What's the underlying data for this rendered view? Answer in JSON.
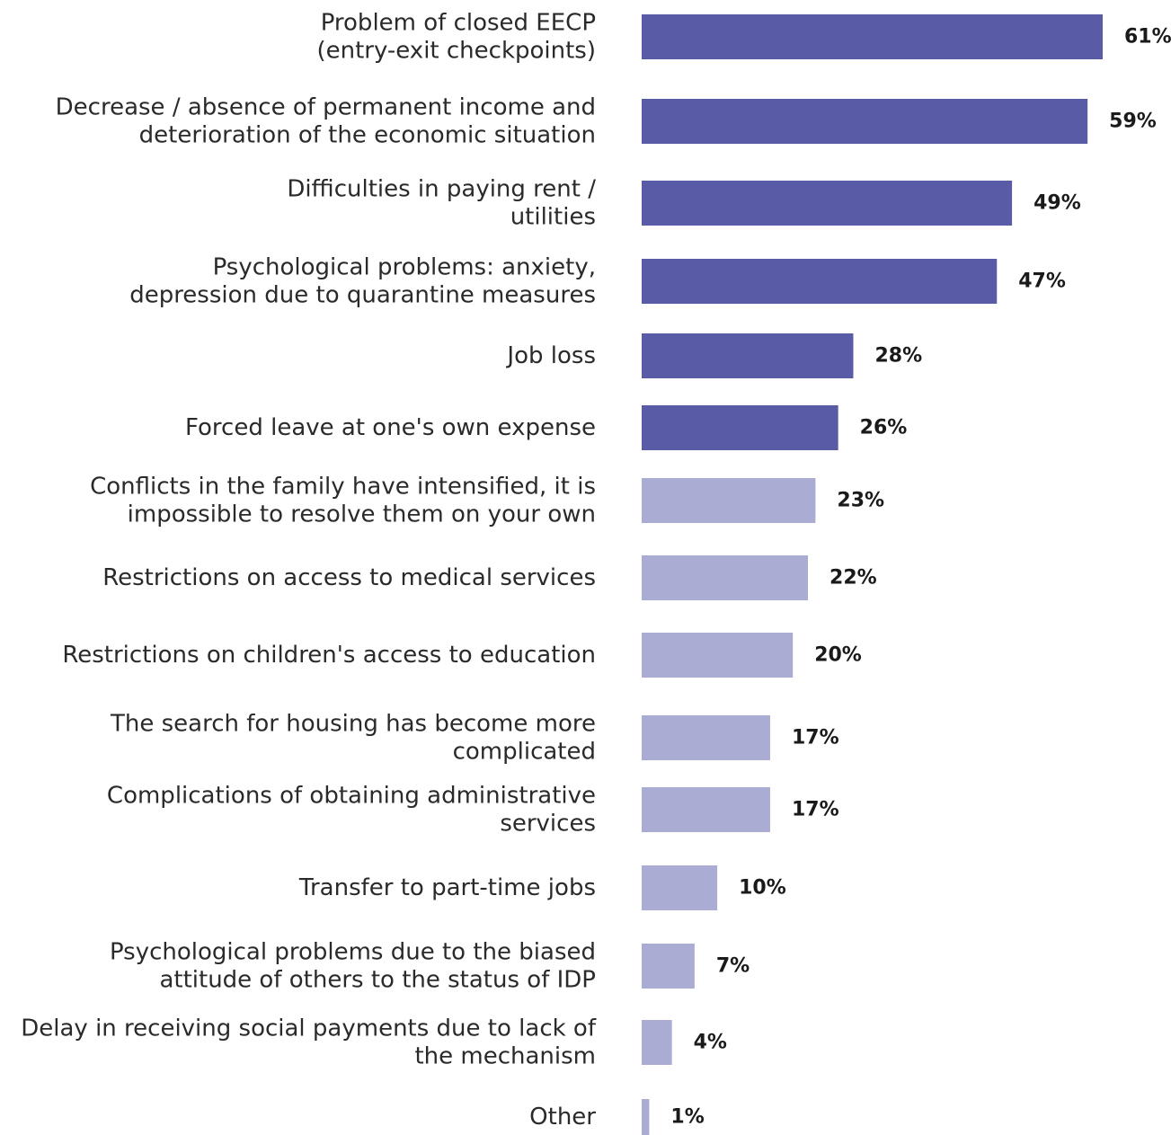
{
  "chart_data": {
    "type": "bar",
    "orientation": "horizontal",
    "categories": [
      [
        "Problem of closed EECP",
        "(entry-exit checkpoints)"
      ],
      [
        "Decrease / absence of permanent income and",
        "deterioration of the economic situation"
      ],
      [
        "Difficulties in paying rent /",
        "utilities"
      ],
      [
        "Psychological problems: anxiety,",
        "depression due to quarantine measures"
      ],
      [
        "Job loss"
      ],
      [
        "Forced leave at one's own expense"
      ],
      [
        "Conflicts in the family have intensified, it is",
        "impossible to resolve them on your own"
      ],
      [
        "Restrictions on access to medical services"
      ],
      [
        "Restrictions on children's access to education"
      ],
      [
        "The search for housing has become more",
        "complicated"
      ],
      [
        "Complications of obtaining administrative",
        "services"
      ],
      [
        "Transfer to part-time jobs"
      ],
      [
        "Psychological problems due to the biased",
        "attitude of others to the status of IDP"
      ],
      [
        "Delay in receiving social payments due to lack of",
        "the mechanism"
      ],
      [
        "Other"
      ]
    ],
    "values": [
      61,
      59,
      49,
      47,
      28,
      26,
      23,
      22,
      20,
      17,
      17,
      10,
      7,
      4,
      1
    ],
    "value_labels": [
      "61%",
      "59%",
      "49%",
      "47%",
      "28%",
      "26%",
      "23%",
      "22%",
      "20%",
      "17%",
      "17%",
      "10%",
      "7%",
      "4%",
      "1%"
    ],
    "colors": {
      "dark": "#5a5ba6",
      "light": "#abacd4"
    },
    "dark_count": 6,
    "title": "",
    "xlabel": "",
    "ylabel": "",
    "xlim": [
      0,
      61
    ],
    "grid": false,
    "legend": "none"
  }
}
